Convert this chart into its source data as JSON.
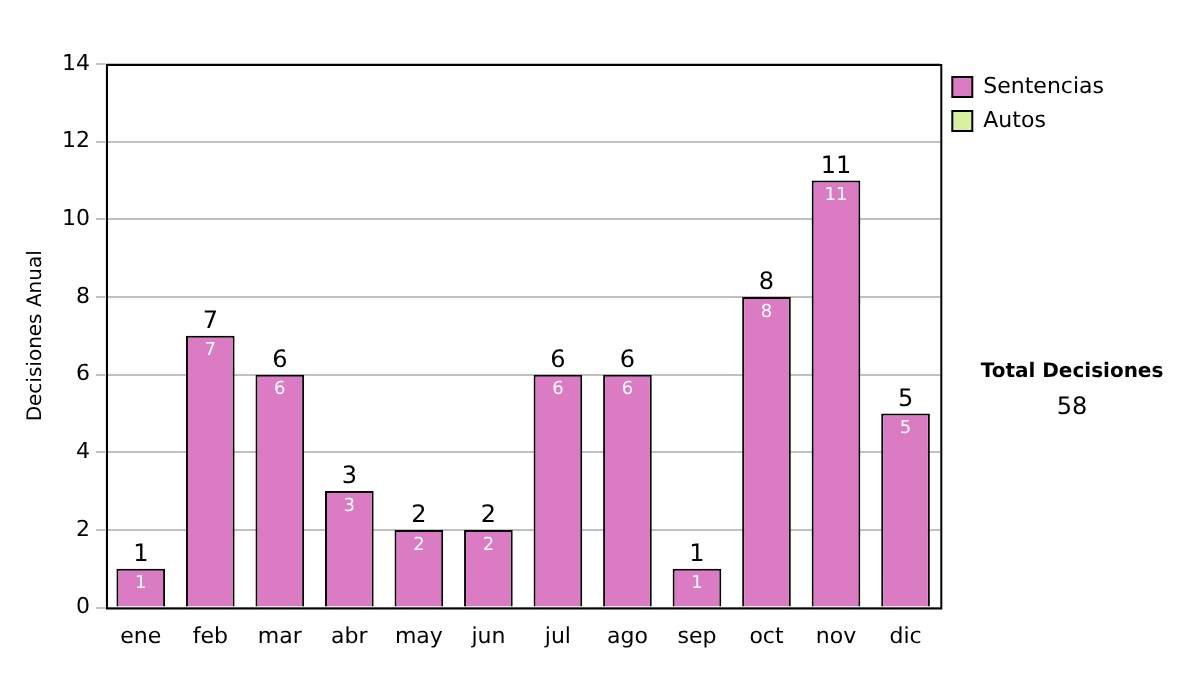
{
  "chart_data": {
    "type": "bar",
    "ylabel": "Decisiones Anual",
    "categories": [
      "ene",
      "feb",
      "mar",
      "abr",
      "may",
      "jun",
      "jul",
      "ago",
      "sep",
      "oct",
      "nov",
      "dic"
    ],
    "series": [
      {
        "name": "Sentencias",
        "color": "#db7bc4",
        "values": [
          1,
          7,
          6,
          3,
          2,
          2,
          6,
          6,
          1,
          8,
          11,
          5
        ]
      },
      {
        "name": "Autos",
        "color": "#d9f0a0",
        "values": [
          null,
          null,
          null,
          null,
          null,
          null,
          null,
          null,
          null,
          null,
          null,
          null
        ]
      }
    ],
    "stacked": true,
    "ylim": [
      0,
      14
    ],
    "yticks": [
      0,
      2,
      4,
      6,
      8,
      10,
      12,
      14
    ],
    "grid": "y",
    "legend": "right",
    "data_labels": true,
    "totals": [
      "1",
      "7",
      "6",
      "3",
      "2",
      "2",
      "6",
      "6",
      "1",
      "8",
      "11",
      "5"
    ],
    "annotations": [
      "Total Decisiones",
      "58"
    ]
  }
}
